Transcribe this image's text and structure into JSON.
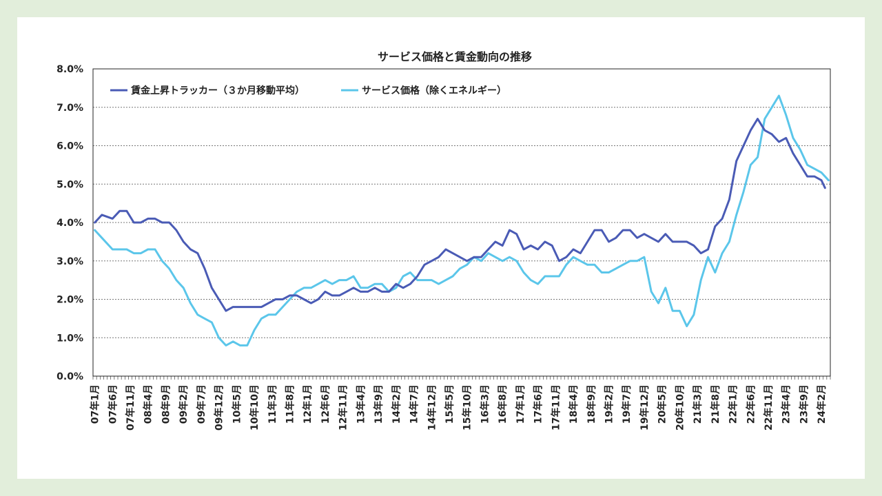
{
  "chart_data": {
    "type": "line",
    "title": "サービス価格と賃金動向の推移",
    "xlabel": "",
    "ylabel": "",
    "ylim": [
      0,
      8
    ],
    "y_ticks": [
      "0.0%",
      "1.0%",
      "2.0%",
      "3.0%",
      "4.0%",
      "5.0%",
      "6.0%",
      "7.0%",
      "8.0%"
    ],
    "x_start": "2007-01",
    "x_end": "2024-04",
    "x_tick_labels": [
      "07年1月",
      "07年6月",
      "07年11月",
      "08年4月",
      "08年9月",
      "09年2月",
      "09年7月",
      "09年12月",
      "10年5月",
      "10年10月",
      "11年3月",
      "11年8月",
      "12年1月",
      "12年6月",
      "12年11月",
      "13年4月",
      "13年9月",
      "14年2月",
      "14年7月",
      "14年12月",
      "15年5月",
      "15年10月",
      "16年3月",
      "16年8月",
      "17年1月",
      "17年6月",
      "17年11月",
      "18年4月",
      "18年9月",
      "19年2月",
      "19年7月",
      "19年12月",
      "20年5月",
      "20年10月",
      "21年3月",
      "21年8月",
      "22年1月",
      "22年6月",
      "22年11月",
      "23年4月",
      "23年9月",
      "24年2月"
    ],
    "grid": true,
    "legend_position": "top-left",
    "colors": {
      "wage": "#4a5bb5",
      "service": "#5bc6ea"
    },
    "series": [
      {
        "name": "賃金上昇トラッカー（３か月移動平均）",
        "key": "wage",
        "x": [
          "2007-01",
          "2007-03",
          "2007-06",
          "2007-08",
          "2007-10",
          "2007-12",
          "2008-02",
          "2008-04",
          "2008-06",
          "2008-08",
          "2008-10",
          "2008-12",
          "2009-02",
          "2009-04",
          "2009-06",
          "2009-08",
          "2009-10",
          "2009-12",
          "2010-02",
          "2010-04",
          "2010-06",
          "2010-08",
          "2010-10",
          "2010-12",
          "2011-02",
          "2011-04",
          "2011-06",
          "2011-08",
          "2011-10",
          "2011-12",
          "2012-02",
          "2012-04",
          "2012-06",
          "2012-08",
          "2012-10",
          "2012-12",
          "2013-02",
          "2013-04",
          "2013-06",
          "2013-08",
          "2013-10",
          "2013-12",
          "2014-02",
          "2014-04",
          "2014-06",
          "2014-08",
          "2014-10",
          "2014-12",
          "2015-02",
          "2015-04",
          "2015-06",
          "2015-08",
          "2015-10",
          "2015-12",
          "2016-02",
          "2016-04",
          "2016-06",
          "2016-08",
          "2016-10",
          "2016-12",
          "2017-02",
          "2017-04",
          "2017-06",
          "2017-08",
          "2017-10",
          "2017-12",
          "2018-02",
          "2018-04",
          "2018-06",
          "2018-08",
          "2018-10",
          "2018-12",
          "2019-02",
          "2019-04",
          "2019-06",
          "2019-08",
          "2019-10",
          "2019-12",
          "2020-02",
          "2020-04",
          "2020-06",
          "2020-08",
          "2020-10",
          "2020-12",
          "2021-02",
          "2021-04",
          "2021-06",
          "2021-08",
          "2021-10",
          "2021-12",
          "2022-02",
          "2022-04",
          "2022-06",
          "2022-08",
          "2022-10",
          "2022-12",
          "2023-02",
          "2023-04",
          "2023-06",
          "2023-08",
          "2023-10",
          "2023-12",
          "2024-02",
          "2024-03"
        ],
        "values": [
          4.0,
          4.2,
          4.1,
          4.3,
          4.3,
          4.0,
          4.0,
          4.1,
          4.1,
          4.0,
          4.0,
          3.8,
          3.5,
          3.3,
          3.2,
          2.8,
          2.3,
          2.0,
          1.7,
          1.8,
          1.8,
          1.8,
          1.8,
          1.8,
          1.9,
          2.0,
          2.0,
          2.1,
          2.1,
          2.0,
          1.9,
          2.0,
          2.2,
          2.1,
          2.1,
          2.2,
          2.3,
          2.2,
          2.2,
          2.3,
          2.2,
          2.2,
          2.4,
          2.3,
          2.4,
          2.6,
          2.9,
          3.0,
          3.1,
          3.3,
          3.2,
          3.1,
          3.0,
          3.1,
          3.1,
          3.3,
          3.5,
          3.4,
          3.8,
          3.7,
          3.3,
          3.4,
          3.3,
          3.5,
          3.4,
          3.0,
          3.1,
          3.3,
          3.2,
          3.5,
          3.8,
          3.8,
          3.5,
          3.6,
          3.8,
          3.8,
          3.6,
          3.7,
          3.6,
          3.5,
          3.7,
          3.5,
          3.5,
          3.5,
          3.4,
          3.2,
          3.3,
          3.9,
          4.1,
          4.6,
          5.6,
          6.0,
          6.4,
          6.7,
          6.4,
          6.3,
          6.1,
          6.2,
          5.8,
          5.5,
          5.2,
          5.2,
          5.1,
          4.9
        ]
      },
      {
        "name": "サービス価格（除くエネルギー）",
        "key": "service",
        "x": [
          "2007-01",
          "2007-03",
          "2007-06",
          "2007-08",
          "2007-10",
          "2007-12",
          "2008-02",
          "2008-04",
          "2008-06",
          "2008-08",
          "2008-10",
          "2008-12",
          "2009-02",
          "2009-04",
          "2009-06",
          "2009-08",
          "2009-10",
          "2009-12",
          "2010-02",
          "2010-04",
          "2010-06",
          "2010-08",
          "2010-10",
          "2010-12",
          "2011-02",
          "2011-04",
          "2011-06",
          "2011-08",
          "2011-10",
          "2011-12",
          "2012-02",
          "2012-04",
          "2012-06",
          "2012-08",
          "2012-10",
          "2012-12",
          "2013-02",
          "2013-04",
          "2013-06",
          "2013-08",
          "2013-10",
          "2013-12",
          "2014-02",
          "2014-04",
          "2014-06",
          "2014-08",
          "2014-10",
          "2014-12",
          "2015-02",
          "2015-04",
          "2015-06",
          "2015-08",
          "2015-10",
          "2015-12",
          "2016-02",
          "2016-04",
          "2016-06",
          "2016-08",
          "2016-10",
          "2016-12",
          "2017-02",
          "2017-04",
          "2017-06",
          "2017-08",
          "2017-10",
          "2017-12",
          "2018-02",
          "2018-04",
          "2018-06",
          "2018-08",
          "2018-10",
          "2018-12",
          "2019-02",
          "2019-04",
          "2019-06",
          "2019-08",
          "2019-10",
          "2019-12",
          "2020-02",
          "2020-04",
          "2020-06",
          "2020-08",
          "2020-10",
          "2020-12",
          "2021-02",
          "2021-04",
          "2021-06",
          "2021-08",
          "2021-10",
          "2021-12",
          "2022-02",
          "2022-04",
          "2022-06",
          "2022-08",
          "2022-10",
          "2022-12",
          "2023-02",
          "2023-04",
          "2023-06",
          "2023-08",
          "2023-10",
          "2023-12",
          "2024-02",
          "2024-04"
        ],
        "values": [
          3.8,
          3.6,
          3.3,
          3.3,
          3.3,
          3.2,
          3.2,
          3.3,
          3.3,
          3.0,
          2.8,
          2.5,
          2.3,
          1.9,
          1.6,
          1.5,
          1.4,
          1.0,
          0.8,
          0.9,
          0.8,
          0.8,
          1.2,
          1.5,
          1.6,
          1.6,
          1.8,
          2.0,
          2.2,
          2.3,
          2.3,
          2.4,
          2.5,
          2.4,
          2.5,
          2.5,
          2.6,
          2.3,
          2.3,
          2.4,
          2.4,
          2.2,
          2.3,
          2.6,
          2.7,
          2.5,
          2.5,
          2.5,
          2.4,
          2.5,
          2.6,
          2.8,
          2.9,
          3.1,
          3.0,
          3.2,
          3.1,
          3.0,
          3.1,
          3.0,
          2.7,
          2.5,
          2.4,
          2.6,
          2.6,
          2.6,
          2.9,
          3.1,
          3.0,
          2.9,
          2.9,
          2.7,
          2.7,
          2.8,
          2.9,
          3.0,
          3.0,
          3.1,
          2.2,
          1.9,
          2.3,
          1.7,
          1.7,
          1.3,
          1.6,
          2.5,
          3.1,
          2.7,
          3.2,
          3.5,
          4.2,
          4.8,
          5.5,
          5.7,
          6.7,
          7.0,
          7.3,
          6.8,
          6.2,
          5.9,
          5.5,
          5.4,
          5.3,
          5.1
        ]
      }
    ]
  }
}
